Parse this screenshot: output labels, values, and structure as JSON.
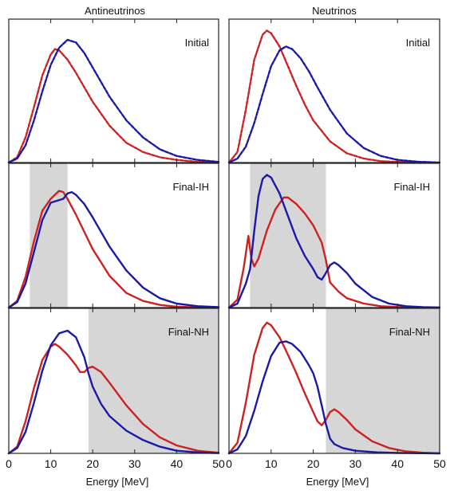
{
  "columns": [
    "Antineutrinos",
    "Neutrinos"
  ],
  "xlabel": "Energy [MeV]",
  "colors": {
    "red": "#cc2222",
    "blue": "#1a1aa6",
    "shade": "#d6d6d6",
    "frame": "#222222"
  },
  "chart_data": [
    {
      "type": "line",
      "column": "Antineutrinos",
      "label": "Initial",
      "xlim": [
        0,
        50
      ],
      "xticks": [
        0,
        10,
        20,
        30,
        40,
        50
      ],
      "shade": null,
      "series": [
        {
          "color": "red",
          "dashed": true,
          "points": [
            [
              0,
              0
            ],
            [
              2,
              0.04
            ],
            [
              4,
              0.19
            ],
            [
              6,
              0.42
            ],
            [
              8,
              0.66
            ],
            [
              10,
              0.82
            ],
            [
              11,
              0.86
            ],
            [
              12,
              0.85
            ],
            [
              14,
              0.78
            ],
            [
              16,
              0.68
            ],
            [
              18,
              0.57
            ],
            [
              20,
              0.46
            ],
            [
              24,
              0.28
            ],
            [
              28,
              0.15
            ],
            [
              32,
              0.08
            ],
            [
              36,
              0.04
            ],
            [
              40,
              0.02
            ],
            [
              45,
              0.005
            ],
            [
              50,
              0
            ]
          ]
        },
        {
          "color": "blue",
          "dashed": true,
          "points": [
            [
              0,
              0
            ],
            [
              2,
              0.03
            ],
            [
              4,
              0.13
            ],
            [
              6,
              0.32
            ],
            [
              8,
              0.54
            ],
            [
              10,
              0.74
            ],
            [
              12,
              0.87
            ],
            [
              14,
              0.93
            ],
            [
              16,
              0.91
            ],
            [
              18,
              0.83
            ],
            [
              20,
              0.72
            ],
            [
              24,
              0.5
            ],
            [
              28,
              0.32
            ],
            [
              32,
              0.19
            ],
            [
              36,
              0.1
            ],
            [
              40,
              0.05
            ],
            [
              45,
              0.02
            ],
            [
              50,
              0.005
            ]
          ]
        }
      ]
    },
    {
      "type": "line",
      "column": "Neutrinos",
      "label": "Initial",
      "xlim": [
        0,
        50
      ],
      "xticks": [
        0,
        10,
        20,
        30,
        40,
        50
      ],
      "shade": null,
      "series": [
        {
          "color": "red",
          "dashed": true,
          "points": [
            [
              0,
              0
            ],
            [
              2,
              0.08
            ],
            [
              4,
              0.4
            ],
            [
              6,
              0.78
            ],
            [
              8,
              0.97
            ],
            [
              9,
              1.0
            ],
            [
              10,
              0.98
            ],
            [
              12,
              0.88
            ],
            [
              14,
              0.73
            ],
            [
              16,
              0.58
            ],
            [
              18,
              0.44
            ],
            [
              20,
              0.32
            ],
            [
              24,
              0.16
            ],
            [
              28,
              0.07
            ],
            [
              32,
              0.03
            ],
            [
              36,
              0.01
            ],
            [
              40,
              0.004
            ],
            [
              50,
              0
            ]
          ]
        },
        {
          "color": "blue",
          "dashed": true,
          "points": [
            [
              0,
              0
            ],
            [
              2,
              0.03
            ],
            [
              4,
              0.12
            ],
            [
              6,
              0.3
            ],
            [
              8,
              0.52
            ],
            [
              10,
              0.73
            ],
            [
              12,
              0.85
            ],
            [
              13.5,
              0.88
            ],
            [
              15,
              0.86
            ],
            [
              17,
              0.79
            ],
            [
              19,
              0.69
            ],
            [
              21,
              0.57
            ],
            [
              24,
              0.4
            ],
            [
              28,
              0.22
            ],
            [
              32,
              0.11
            ],
            [
              36,
              0.05
            ],
            [
              40,
              0.02
            ],
            [
              45,
              0.006
            ],
            [
              50,
              0
            ]
          ]
        }
      ]
    },
    {
      "type": "line",
      "column": "Antineutrinos",
      "label": "Final-IH",
      "xlim": [
        0,
        50
      ],
      "xticks": [
        0,
        10,
        20,
        30,
        40,
        50
      ],
      "shade": [
        5,
        14
      ],
      "series": [
        {
          "color": "red",
          "dashed": false,
          "points": [
            [
              0,
              0
            ],
            [
              2,
              0.05
            ],
            [
              4,
              0.23
            ],
            [
              6,
              0.5
            ],
            [
              8,
              0.73
            ],
            [
              10,
              0.82
            ],
            [
              12,
              0.88
            ],
            [
              13,
              0.87
            ],
            [
              14,
              0.82
            ],
            [
              16,
              0.7
            ],
            [
              18,
              0.57
            ],
            [
              20,
              0.44
            ],
            [
              24,
              0.24
            ],
            [
              28,
              0.11
            ],
            [
              32,
              0.05
            ],
            [
              36,
              0.02
            ],
            [
              40,
              0.006
            ],
            [
              45,
              0.002
            ],
            [
              50,
              0
            ]
          ]
        },
        {
          "color": "blue",
          "dashed": false,
          "points": [
            [
              0,
              0
            ],
            [
              2,
              0.04
            ],
            [
              4,
              0.18
            ],
            [
              6,
              0.42
            ],
            [
              8,
              0.66
            ],
            [
              10,
              0.79
            ],
            [
              12,
              0.81
            ],
            [
              13,
              0.82
            ],
            [
              14,
              0.86
            ],
            [
              15,
              0.87
            ],
            [
              16,
              0.85
            ],
            [
              18,
              0.78
            ],
            [
              20,
              0.68
            ],
            [
              24,
              0.46
            ],
            [
              28,
              0.28
            ],
            [
              32,
              0.15
            ],
            [
              36,
              0.07
            ],
            [
              40,
              0.03
            ],
            [
              45,
              0.01
            ],
            [
              50,
              0.003
            ]
          ]
        }
      ]
    },
    {
      "type": "line",
      "column": "Neutrinos",
      "label": "Final-IH",
      "xlim": [
        0,
        50
      ],
      "xticks": [
        0,
        10,
        20,
        30,
        40,
        50
      ],
      "shade": [
        5,
        23
      ],
      "series": [
        {
          "color": "red",
          "dashed": false,
          "points": [
            [
              0,
              0
            ],
            [
              2,
              0.06
            ],
            [
              3.5,
              0.3
            ],
            [
              4.6,
              0.54
            ],
            [
              5.3,
              0.37
            ],
            [
              6,
              0.31
            ],
            [
              7,
              0.37
            ],
            [
              9,
              0.58
            ],
            [
              11,
              0.74
            ],
            [
              13,
              0.83
            ],
            [
              14,
              0.83
            ],
            [
              16,
              0.78
            ],
            [
              18,
              0.71
            ],
            [
              20,
              0.62
            ],
            [
              22,
              0.49
            ],
            [
              23,
              0.36
            ],
            [
              23.5,
              0.27
            ],
            [
              24,
              0.19
            ],
            [
              26,
              0.12
            ],
            [
              28,
              0.07
            ],
            [
              32,
              0.03
            ],
            [
              36,
              0.01
            ],
            [
              40,
              0.004
            ],
            [
              50,
              0
            ]
          ]
        },
        {
          "color": "blue",
          "dashed": false,
          "points": [
            [
              0,
              0
            ],
            [
              2,
              0.03
            ],
            [
              4,
              0.18
            ],
            [
              5,
              0.29
            ],
            [
              6,
              0.58
            ],
            [
              7,
              0.84
            ],
            [
              8,
              0.97
            ],
            [
              9,
              1.0
            ],
            [
              10,
              0.98
            ],
            [
              12,
              0.86
            ],
            [
              14,
              0.69
            ],
            [
              16,
              0.52
            ],
            [
              18,
              0.39
            ],
            [
              20,
              0.29
            ],
            [
              21,
              0.23
            ],
            [
              22,
              0.21
            ],
            [
              23,
              0.26
            ],
            [
              24,
              0.32
            ],
            [
              25,
              0.34
            ],
            [
              26,
              0.32
            ],
            [
              28,
              0.26
            ],
            [
              30,
              0.18
            ],
            [
              34,
              0.08
            ],
            [
              38,
              0.03
            ],
            [
              42,
              0.01
            ],
            [
              46,
              0.003
            ],
            [
              50,
              0
            ]
          ]
        }
      ]
    },
    {
      "type": "line",
      "column": "Antineutrinos",
      "label": "Final-NH",
      "xlim": [
        0,
        50
      ],
      "xticks": [
        0,
        10,
        20,
        30,
        40,
        50
      ],
      "shade": [
        19,
        50
      ],
      "series": [
        {
          "color": "red",
          "dashed": false,
          "points": [
            [
              0,
              0
            ],
            [
              2,
              0.05
            ],
            [
              4,
              0.24
            ],
            [
              6,
              0.49
            ],
            [
              8,
              0.7
            ],
            [
              10,
              0.8
            ],
            [
              11,
              0.82
            ],
            [
              12,
              0.8
            ],
            [
              14,
              0.74
            ],
            [
              16,
              0.66
            ],
            [
              17,
              0.61
            ],
            [
              18,
              0.61
            ],
            [
              19,
              0.64
            ],
            [
              20,
              0.65
            ],
            [
              22,
              0.61
            ],
            [
              24,
              0.53
            ],
            [
              28,
              0.36
            ],
            [
              32,
              0.22
            ],
            [
              36,
              0.12
            ],
            [
              40,
              0.06
            ],
            [
              45,
              0.02
            ],
            [
              50,
              0.005
            ]
          ]
        },
        {
          "color": "blue",
          "dashed": false,
          "points": [
            [
              0,
              0
            ],
            [
              2,
              0.04
            ],
            [
              4,
              0.16
            ],
            [
              6,
              0.38
            ],
            [
              8,
              0.62
            ],
            [
              10,
              0.81
            ],
            [
              12,
              0.9
            ],
            [
              14,
              0.92
            ],
            [
              16,
              0.87
            ],
            [
              18,
              0.72
            ],
            [
              19,
              0.6
            ],
            [
              20,
              0.5
            ],
            [
              22,
              0.37
            ],
            [
              24,
              0.28
            ],
            [
              28,
              0.17
            ],
            [
              32,
              0.1
            ],
            [
              36,
              0.05
            ],
            [
              40,
              0.02
            ],
            [
              45,
              0.007
            ],
            [
              50,
              0.002
            ]
          ]
        }
      ]
    },
    {
      "type": "line",
      "column": "Neutrinos",
      "label": "Final-NH",
      "xlim": [
        0,
        50
      ],
      "xticks": [
        0,
        10,
        20,
        30,
        40,
        50
      ],
      "shade": [
        23,
        50
      ],
      "series": [
        {
          "color": "red",
          "dashed": false,
          "points": [
            [
              0,
              0
            ],
            [
              2,
              0.08
            ],
            [
              4,
              0.38
            ],
            [
              6,
              0.74
            ],
            [
              8,
              0.94
            ],
            [
              9,
              0.98
            ],
            [
              10,
              0.96
            ],
            [
              12,
              0.87
            ],
            [
              14,
              0.74
            ],
            [
              16,
              0.6
            ],
            [
              18,
              0.45
            ],
            [
              20,
              0.31
            ],
            [
              21,
              0.24
            ],
            [
              22,
              0.21
            ],
            [
              23,
              0.25
            ],
            [
              24,
              0.31
            ],
            [
              25,
              0.33
            ],
            [
              26,
              0.31
            ],
            [
              28,
              0.25
            ],
            [
              30,
              0.18
            ],
            [
              34,
              0.09
            ],
            [
              38,
              0.04
            ],
            [
              42,
              0.015
            ],
            [
              46,
              0.005
            ],
            [
              50,
              0
            ]
          ]
        },
        {
          "color": "blue",
          "dashed": false,
          "points": [
            [
              0,
              0
            ],
            [
              2,
              0.03
            ],
            [
              4,
              0.13
            ],
            [
              6,
              0.32
            ],
            [
              8,
              0.54
            ],
            [
              10,
              0.73
            ],
            [
              12,
              0.83
            ],
            [
              13.5,
              0.84
            ],
            [
              15,
              0.82
            ],
            [
              17,
              0.76
            ],
            [
              19,
              0.66
            ],
            [
              20,
              0.6
            ],
            [
              21,
              0.5
            ],
            [
              22,
              0.36
            ],
            [
              23,
              0.22
            ],
            [
              24,
              0.11
            ],
            [
              25,
              0.07
            ],
            [
              27,
              0.04
            ],
            [
              30,
              0.02
            ],
            [
              35,
              0.008
            ],
            [
              40,
              0.003
            ],
            [
              50,
              0
            ]
          ]
        }
      ]
    }
  ]
}
